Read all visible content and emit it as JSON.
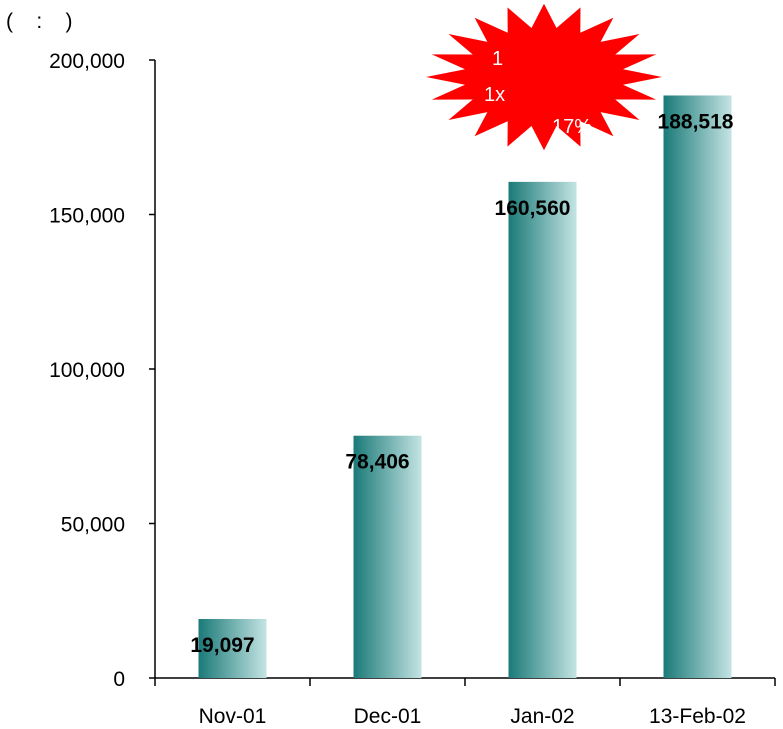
{
  "chart_data": {
    "type": "bar",
    "unit_label": "(    :    )",
    "categories": [
      "Nov-01",
      "Dec-01",
      "Jan-02",
      "13-Feb-02"
    ],
    "values": [
      19097,
      78406,
      160560,
      188518
    ],
    "value_labels": [
      "19,097",
      "78,406",
      "160,560",
      "188,518"
    ],
    "ylim": [
      0,
      200000
    ],
    "yticks": [
      0,
      50000,
      100000,
      150000,
      200000
    ],
    "ytick_labels": [
      "0",
      "50,000",
      "100,000",
      "150,000",
      "200,000"
    ],
    "grid": false,
    "bar_gradient": [
      "#1a7a78",
      "#c4e4e3"
    ],
    "annotation": {
      "lines": [
        "1",
        "1x",
        "17%"
      ],
      "color": "#ff0000",
      "text_color": "#ffffff"
    }
  }
}
